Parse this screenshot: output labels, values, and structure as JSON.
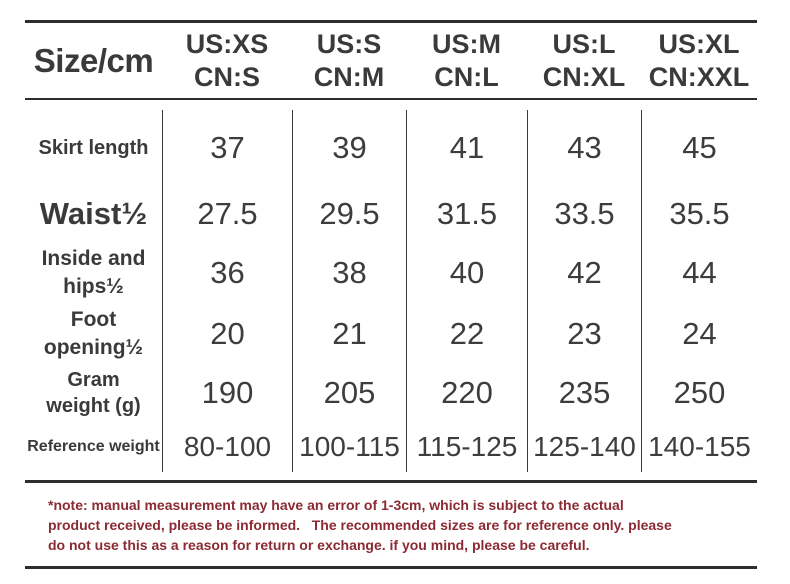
{
  "chart_data": {
    "type": "table",
    "title": "Size/cm",
    "unit": "cm",
    "columns": [
      {
        "us": "US:XS",
        "cn": "CN:S"
      },
      {
        "us": "US:S",
        "cn": "CN:M"
      },
      {
        "us": "US:M",
        "cn": "CN:L"
      },
      {
        "us": "US:L",
        "cn": "CN:XL"
      },
      {
        "us": "US:XL",
        "cn": "CN:XXL"
      }
    ],
    "rows": [
      {
        "label": "Skirt length",
        "values": [
          "37",
          "39",
          "41",
          "43",
          "45"
        ]
      },
      {
        "label": "Waist½",
        "values": [
          "27.5",
          "29.5",
          "31.5",
          "33.5",
          "35.5"
        ]
      },
      {
        "label": "Inside and\nhips½",
        "values": [
          "36",
          "38",
          "40",
          "42",
          "44"
        ]
      },
      {
        "label": "Foot\nopening½",
        "values": [
          "20",
          "21",
          "22",
          "23",
          "24"
        ]
      },
      {
        "label": "Gram\nweight (g)",
        "values": [
          "190",
          "205",
          "220",
          "235",
          "250"
        ]
      },
      {
        "label": "Reference weight",
        "values": [
          "80-100",
          "100-115",
          "115-125",
          "125-140",
          "140-155"
        ]
      }
    ]
  },
  "note": {
    "text": "*note: manual measurement may have an error of 1-3cm, which is subject to the actual\nproduct received, please be informed.   The recommended sizes are for reference only. please\ndo not use this as a reason for return or exchange. if you mind, please be careful."
  },
  "colors": {
    "table_text": "#3a3a3a",
    "note_text": "#8b2a33",
    "rule_line": "#2d2d2d",
    "background": "#ffffff"
  }
}
